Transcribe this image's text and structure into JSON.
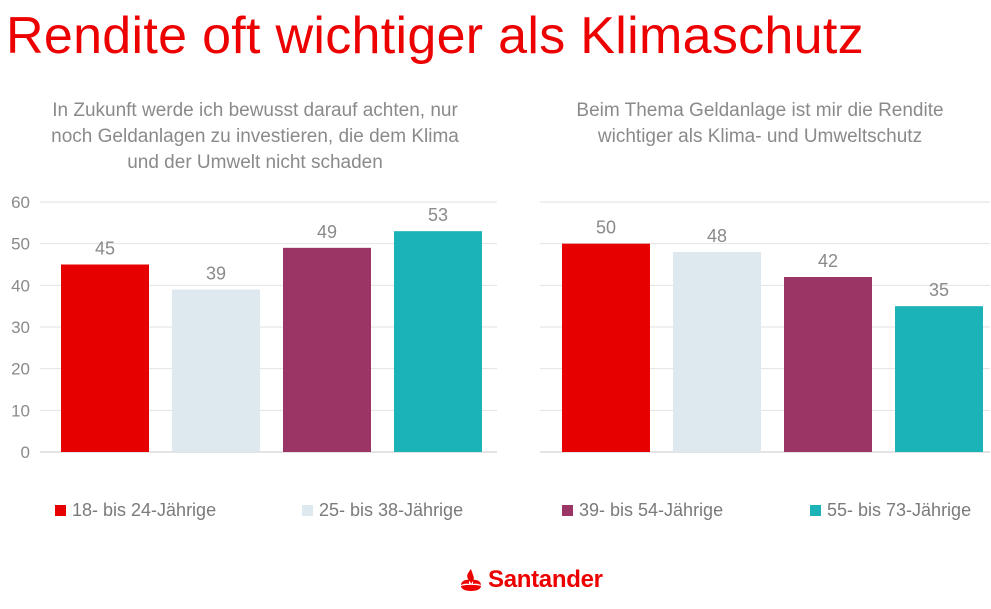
{
  "title": "Rendite oft wichtiger als Klimaschutz",
  "chart_data": [
    {
      "type": "bar",
      "title_lines": [
        "In Zukunft werde ich bewusst darauf achten, nur",
        "noch Geldanlagen zu investieren, die dem Klima",
        "und der Umwelt nicht schaden"
      ],
      "categories": [
        "18- bis 24-Jährige",
        "25- bis 38-Jährige",
        "39- bis 54-Jährige",
        "55- bis 73-Jährige"
      ],
      "values": [
        45,
        39,
        49,
        53
      ],
      "ylim": [
        0,
        60
      ],
      "yticks": [
        0,
        10,
        20,
        30,
        40,
        50,
        60
      ],
      "grid": true
    },
    {
      "type": "bar",
      "title_lines": [
        "Beim Thema Geldanlage ist mir die Rendite",
        "wichtiger als Klima- und Umweltschutz"
      ],
      "categories": [
        "18- bis 24-Jährige",
        "25- bis 38-Jährige",
        "39- bis 54-Jährige",
        "55- bis 73-Jährige"
      ],
      "values": [
        50,
        48,
        42,
        35
      ],
      "ylim": [
        0,
        60
      ],
      "grid": true
    }
  ],
  "series_colors": [
    "#e60000",
    "#dde9ef",
    "#9b3566",
    "#1cb3b8"
  ],
  "legend": {
    "position": "bottom",
    "items": [
      "18- bis 24-Jährige",
      "25- bis 38-Jährige",
      "39- bis 54-Jährige",
      "55- bis 73-Jährige"
    ]
  },
  "brand": {
    "name": "Santander",
    "color": "#ec0000"
  }
}
